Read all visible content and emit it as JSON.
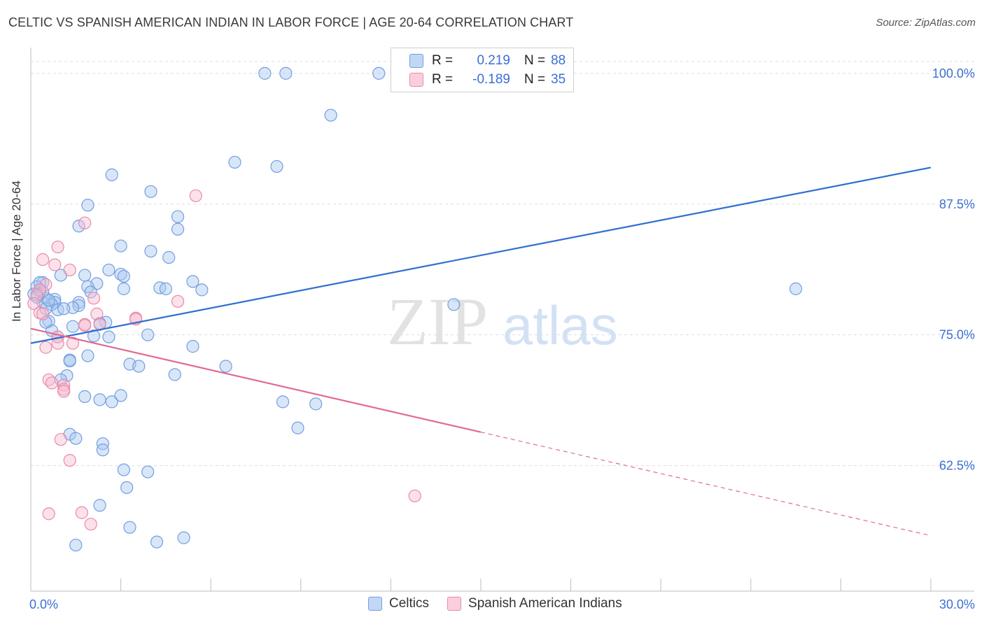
{
  "title": "CELTIC VS SPANISH AMERICAN INDIAN IN LABOR FORCE | AGE 20-64 CORRELATION CHART",
  "source": "Source: ZipAtlas.com",
  "watermark": {
    "zip": "ZIP",
    "atlas": "atlas"
  },
  "legend": {
    "rows": [
      {
        "r_label": "R =",
        "r_value": "0.219",
        "n_label": "N =",
        "n_value": "88"
      },
      {
        "r_label": "R =",
        "r_value": "-0.189",
        "n_label": "N =",
        "n_value": "35"
      }
    ]
  },
  "colors": {
    "blue_fill": "#aac8f0",
    "blue_stroke": "#6f9fe0",
    "blue_line": "#2f6fd0",
    "pink_fill": "#f7bcd0",
    "pink_stroke": "#e98aab",
    "pink_line": "#e06b93",
    "tick_label": "#3b6fd4",
    "grid": "#dddddd"
  },
  "chart_data": {
    "type": "scatter",
    "title": "CELTIC VS SPANISH AMERICAN INDIAN IN LABOR FORCE | AGE 20-64 CORRELATION CHART",
    "xlabel": "",
    "ylabel": "In Labor Force | Age 20-64",
    "xlim": [
      0,
      30
    ],
    "ylim": [
      50.5,
      103
    ],
    "x_tick_labels": [
      "0.0%",
      "30.0%"
    ],
    "y_ticks": [
      62.5,
      75.0,
      87.5,
      100.0
    ],
    "y_tick_labels": [
      "62.5%",
      "75.0%",
      "87.5%",
      "100.0%"
    ],
    "grid": true,
    "legend_position": "top-center",
    "series": [
      {
        "name": "Celtics",
        "r": 0.219,
        "n": 88,
        "trend": {
          "x0": 0,
          "y0": 74.2,
          "x1": 30,
          "y1": 91.0
        },
        "points": [
          [
            7.8,
            100
          ],
          [
            8.5,
            100
          ],
          [
            11.6,
            100
          ],
          [
            10.0,
            96
          ],
          [
            6.8,
            91.5
          ],
          [
            8.2,
            91.1
          ],
          [
            2.7,
            90.3
          ],
          [
            4.0,
            88.7
          ],
          [
            1.9,
            87.4
          ],
          [
            4.9,
            86.3
          ],
          [
            1.6,
            85.4
          ],
          [
            4.9,
            85.1
          ],
          [
            3.0,
            83.5
          ],
          [
            4.0,
            83.0
          ],
          [
            4.6,
            82.4
          ],
          [
            2.6,
            81.2
          ],
          [
            3.0,
            80.8
          ],
          [
            1.8,
            80.7
          ],
          [
            1.0,
            80.7
          ],
          [
            3.1,
            80.6
          ],
          [
            5.4,
            80.1
          ],
          [
            0.4,
            80.0
          ],
          [
            2.2,
            79.9
          ],
          [
            1.9,
            79.6
          ],
          [
            3.1,
            79.4
          ],
          [
            4.3,
            79.5
          ],
          [
            4.5,
            79.4
          ],
          [
            5.7,
            79.3
          ],
          [
            0.3,
            79.2
          ],
          [
            2.0,
            79.1
          ],
          [
            0.1,
            78.9
          ],
          [
            0.5,
            78.5
          ],
          [
            0.8,
            78.4
          ],
          [
            0.4,
            78.1
          ],
          [
            0.8,
            78.1
          ],
          [
            1.6,
            78.1
          ],
          [
            1.6,
            77.8
          ],
          [
            0.7,
            77.9
          ],
          [
            1.4,
            77.6
          ],
          [
            0.5,
            77.5
          ],
          [
            0.9,
            77.4
          ],
          [
            14.1,
            77.9
          ],
          [
            25.5,
            79.4
          ],
          [
            0.6,
            76.3
          ],
          [
            2.5,
            76.2
          ],
          [
            2.3,
            76.1
          ],
          [
            1.4,
            75.8
          ],
          [
            0.7,
            75.4
          ],
          [
            0.9,
            74.8
          ],
          [
            2.1,
            74.9
          ],
          [
            2.6,
            74.8
          ],
          [
            3.9,
            75.0
          ],
          [
            5.4,
            73.9
          ],
          [
            1.9,
            73.0
          ],
          [
            1.3,
            72.6
          ],
          [
            1.3,
            72.5
          ],
          [
            3.3,
            72.2
          ],
          [
            3.6,
            72.0
          ],
          [
            6.5,
            72.0
          ],
          [
            4.8,
            71.2
          ],
          [
            1.2,
            71.1
          ],
          [
            1.0,
            70.7
          ],
          [
            1.8,
            69.1
          ],
          [
            2.3,
            68.8
          ],
          [
            2.7,
            68.6
          ],
          [
            3.0,
            69.2
          ],
          [
            8.4,
            68.6
          ],
          [
            9.5,
            68.4
          ],
          [
            8.9,
            66.1
          ],
          [
            1.3,
            65.5
          ],
          [
            1.5,
            65.1
          ],
          [
            2.4,
            64.6
          ],
          [
            2.4,
            64.0
          ],
          [
            3.1,
            62.1
          ],
          [
            3.9,
            61.9
          ],
          [
            3.2,
            60.4
          ],
          [
            2.3,
            58.7
          ],
          [
            3.3,
            56.6
          ],
          [
            1.5,
            54.9
          ],
          [
            4.2,
            55.2
          ],
          [
            5.1,
            55.6
          ],
          [
            0.2,
            79.6
          ],
          [
            0.3,
            80.0
          ],
          [
            0.4,
            79.1
          ],
          [
            0.6,
            78.3
          ],
          [
            0.2,
            78.6
          ],
          [
            0.5,
            76.2
          ],
          [
            1.1,
            77.5
          ]
        ]
      },
      {
        "name": "Spanish American Indians",
        "r": -0.189,
        "n": 35,
        "trend": {
          "x0": 0,
          "y0": 75.6,
          "x1": 15,
          "y1": 65.7
        },
        "trend_dashed": {
          "x0": 15,
          "y0": 65.7,
          "x1": 30,
          "y1": 55.8
        },
        "points": [
          [
            5.5,
            88.3
          ],
          [
            1.8,
            85.7
          ],
          [
            0.9,
            83.4
          ],
          [
            0.4,
            82.2
          ],
          [
            0.8,
            81.7
          ],
          [
            1.3,
            81.2
          ],
          [
            0.5,
            79.8
          ],
          [
            0.3,
            79.3
          ],
          [
            0.2,
            78.8
          ],
          [
            4.9,
            78.2
          ],
          [
            2.1,
            78.5
          ],
          [
            0.1,
            78.0
          ],
          [
            0.3,
            77.1
          ],
          [
            0.4,
            77.0
          ],
          [
            2.2,
            77.0
          ],
          [
            3.5,
            76.6
          ],
          [
            3.5,
            76.5
          ],
          [
            1.8,
            76.0
          ],
          [
            1.8,
            75.9
          ],
          [
            2.3,
            76.0
          ],
          [
            0.9,
            74.8
          ],
          [
            0.9,
            74.2
          ],
          [
            1.4,
            74.2
          ],
          [
            0.5,
            73.8
          ],
          [
            0.6,
            70.7
          ],
          [
            0.7,
            70.4
          ],
          [
            1.1,
            70.2
          ],
          [
            1.1,
            69.8
          ],
          [
            1.1,
            69.6
          ],
          [
            1.0,
            65.0
          ],
          [
            1.3,
            63.0
          ],
          [
            0.6,
            57.9
          ],
          [
            1.7,
            58.0
          ],
          [
            2.0,
            56.9
          ],
          [
            12.8,
            59.6
          ]
        ]
      }
    ]
  },
  "bottom_legend": [
    {
      "label": "Celtics"
    },
    {
      "label": "Spanish American Indians"
    }
  ]
}
